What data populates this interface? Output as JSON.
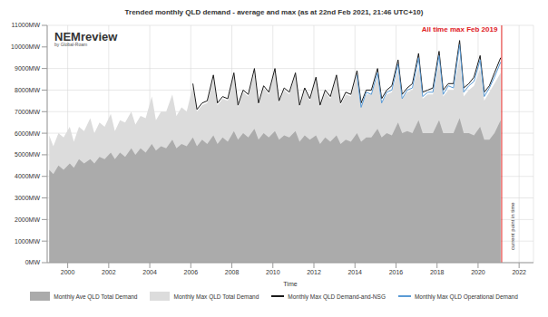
{
  "chart_data": {
    "type": "area",
    "title": "Trended monthly QLD demand - average and max (as at 22nd Feb 2021, 21:46 UTC+10)",
    "logo": [
      "NEMreview",
      "by Global-Roam"
    ],
    "x_label": "Time",
    "x": [
      1999.1,
      1999.3,
      1999.55,
      1999.8,
      2000.1,
      2000.3,
      2000.55,
      2000.8,
      2001.1,
      2001.3,
      2001.55,
      2001.8,
      2002.1,
      2002.3,
      2002.55,
      2002.8,
      2003.1,
      2003.3,
      2003.55,
      2003.8,
      2004.1,
      2004.3,
      2004.55,
      2004.8,
      2005.1,
      2005.3,
      2005.55,
      2005.8,
      2006.1,
      2006.3,
      2006.55,
      2006.8,
      2007.1,
      2007.3,
      2007.55,
      2007.8,
      2008.1,
      2008.3,
      2008.55,
      2008.8,
      2009.1,
      2009.3,
      2009.55,
      2009.8,
      2010.1,
      2010.3,
      2010.55,
      2010.8,
      2011.1,
      2011.3,
      2011.55,
      2011.8,
      2012.1,
      2012.3,
      2012.55,
      2012.8,
      2013.1,
      2013.3,
      2013.55,
      2013.8,
      2014.1,
      2014.3,
      2014.55,
      2014.8,
      2015.1,
      2015.3,
      2015.55,
      2015.8,
      2016.1,
      2016.3,
      2016.55,
      2016.8,
      2017.1,
      2017.3,
      2017.55,
      2017.8,
      2018.1,
      2018.3,
      2018.55,
      2018.8,
      2019.1,
      2019.3,
      2019.55,
      2019.8,
      2020.1,
      2020.3,
      2020.55,
      2020.8,
      2021.1
    ],
    "series": [
      {
        "name": "Monthly Ave QLD Total Demand",
        "type": "area",
        "color": "#ababab",
        "values": [
          4300,
          4100,
          4500,
          4300,
          4600,
          4400,
          4800,
          4600,
          4800,
          4600,
          4900,
          4800,
          5100,
          4800,
          5100,
          4900,
          5300,
          5000,
          5300,
          5100,
          5500,
          5200,
          5400,
          5300,
          5700,
          5300,
          5500,
          5400,
          5800,
          5400,
          5700,
          5500,
          5900,
          5500,
          5800,
          5600,
          6100,
          5700,
          6000,
          5800,
          6200,
          5700,
          6000,
          5800,
          6100,
          5700,
          5900,
          5800,
          6100,
          5600,
          5900,
          5700,
          5900,
          5500,
          5800,
          5600,
          5900,
          5500,
          5700,
          5600,
          6000,
          5600,
          5800,
          5800,
          6200,
          5800,
          6000,
          5900,
          6500,
          6000,
          6100,
          6000,
          6600,
          6000,
          6000,
          6000,
          6600,
          6000,
          6000,
          6000,
          6700,
          6000,
          6000,
          5900,
          6300,
          5700,
          5700,
          6000,
          6600
        ]
      },
      {
        "name": "Monthly Max QLD Total Demand",
        "type": "area",
        "color": "#dcdcdc",
        "values": [
          5900,
          5400,
          6000,
          5800,
          6300,
          5600,
          6300,
          6100,
          6700,
          6000,
          6500,
          6300,
          6900,
          6100,
          6600,
          6500,
          7000,
          6400,
          6800,
          6700,
          7700,
          6600,
          7000,
          7000,
          7800,
          6800,
          7200,
          7000,
          8200,
          7000,
          7300,
          7400,
          8500,
          7300,
          7600,
          7500,
          8700,
          7200,
          7900,
          7700,
          8800,
          7300,
          8100,
          7800,
          8900,
          7400,
          8000,
          7800,
          8700,
          7200,
          8000,
          7500,
          8500,
          7200,
          7900,
          7600,
          8600,
          7300,
          7800,
          7700,
          8700,
          7300,
          7800,
          7800,
          8600,
          7400,
          7800,
          7900,
          8900,
          7600,
          7900,
          8000,
          9100,
          7600,
          7800,
          7800,
          9200,
          7700,
          8000,
          8000,
          9500,
          7700,
          8000,
          8200,
          9000,
          7500,
          7900,
          8300,
          8800
        ]
      },
      {
        "name": "Monthly Max QLD Demand-and-NSG",
        "type": "line",
        "color": "#1a1a1a",
        "values": [
          null,
          null,
          null,
          null,
          null,
          null,
          null,
          null,
          null,
          null,
          null,
          null,
          null,
          null,
          null,
          null,
          null,
          null,
          null,
          null,
          null,
          null,
          null,
          null,
          null,
          null,
          null,
          null,
          8300,
          7100,
          7400,
          7500,
          8700,
          7400,
          7700,
          7600,
          8800,
          7300,
          8000,
          7800,
          9000,
          7400,
          8200,
          7900,
          9000,
          7500,
          8100,
          7900,
          8800,
          7300,
          8100,
          7600,
          8600,
          7300,
          8000,
          7700,
          8700,
          7400,
          7900,
          7800,
          8900,
          7400,
          8000,
          8000,
          9000,
          7600,
          8000,
          8200,
          9400,
          7800,
          8100,
          8300,
          9700,
          7900,
          8000,
          8100,
          9800,
          8000,
          8300,
          8300,
          10300,
          8100,
          8300,
          8600,
          9600,
          7900,
          8200,
          8800,
          9500
        ]
      },
      {
        "name": "Monthly Max QLD Operational Demand",
        "type": "line",
        "color": "#5b9bd5",
        "values": [
          null,
          null,
          null,
          null,
          null,
          null,
          null,
          null,
          null,
          null,
          null,
          null,
          null,
          null,
          null,
          null,
          null,
          null,
          null,
          null,
          null,
          null,
          null,
          null,
          null,
          null,
          null,
          null,
          null,
          null,
          null,
          null,
          null,
          null,
          null,
          null,
          null,
          null,
          null,
          null,
          null,
          null,
          null,
          null,
          null,
          null,
          null,
          null,
          null,
          null,
          null,
          null,
          null,
          null,
          null,
          null,
          null,
          null,
          null,
          null,
          8700,
          7200,
          7900,
          7800,
          8800,
          7400,
          7900,
          8000,
          9200,
          7600,
          8000,
          8100,
          9500,
          7700,
          7900,
          7900,
          9600,
          7800,
          8200,
          8100,
          10100,
          7900,
          8200,
          8400,
          9400,
          7700,
          8100,
          8600,
          9300
        ]
      }
    ],
    "xlim": [
      1999,
      2022.7
    ],
    "xticks": [
      2000,
      2002,
      2004,
      2006,
      2008,
      2010,
      2012,
      2014,
      2016,
      2018,
      2020,
      2022
    ],
    "ylim": [
      0,
      11000
    ],
    "yticks": [
      {
        "value": 0,
        "label": "0MW"
      },
      {
        "value": 1000,
        "label": "1000MW"
      },
      {
        "value": 2000,
        "label": "2000MW"
      },
      {
        "value": 3000,
        "label": "3000MW"
      },
      {
        "value": 4000,
        "label": "4000MW"
      },
      {
        "value": 5000,
        "label": "5000MW"
      },
      {
        "value": 6000,
        "label": "6000MW"
      },
      {
        "value": 7000,
        "label": "7000MW"
      },
      {
        "value": 8000,
        "label": "8000MW"
      },
      {
        "value": 9000,
        "label": "9000MW"
      },
      {
        "value": 10000,
        "label": "10000MW"
      },
      {
        "value": 11000,
        "label": "11000MW"
      }
    ],
    "grid": true,
    "legend": "bottom",
    "annotations": [
      {
        "text": "All time max Feb 2019",
        "x": 2019.1,
        "y": 10300,
        "color": "#e0201e"
      }
    ],
    "vlines": [
      {
        "x": 2021.15,
        "label": "current point in time",
        "color": "#e0201e"
      }
    ]
  }
}
